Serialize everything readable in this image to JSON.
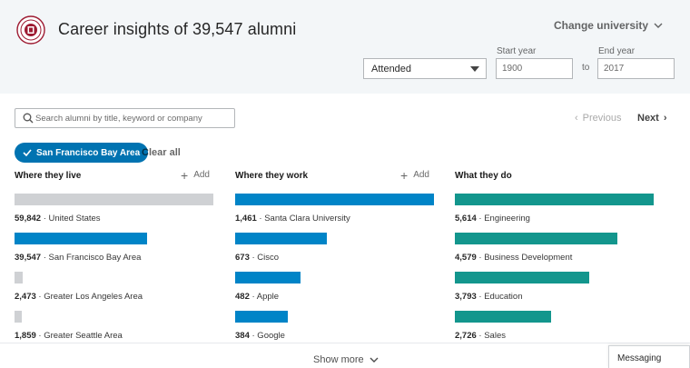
{
  "header": {
    "title": "Career insights of 39,547 alumni",
    "change_university": "Change university",
    "attendance_select": "Attended",
    "start_year_label": "Start year",
    "start_year_value": "1900",
    "to_label": "to",
    "end_year_label": "End year",
    "end_year_value": "2017"
  },
  "search": {
    "placeholder": "Search alumni by title, keyword or company"
  },
  "pager": {
    "previous": "Previous",
    "next": "Next"
  },
  "filters": {
    "active_chip": "San Francisco Bay Area",
    "clear_all": "Clear all"
  },
  "columns": [
    {
      "heading": "Where they live",
      "add_label": "Add",
      "bar_color": "#cfd1d4",
      "items": [
        {
          "count": "59,842",
          "label": "United States",
          "value": 59842,
          "fraction": 1.0
        },
        {
          "count": "39,547",
          "label": "San Francisco Bay Area",
          "value": 39547,
          "fraction": 0.665
        },
        {
          "count": "2,473",
          "label": "Greater Los Angeles Area",
          "value": 2473,
          "fraction": 0.042
        },
        {
          "count": "1,859",
          "label": "Greater Seattle Area",
          "value": 1859,
          "fraction": 0.032
        }
      ],
      "highlight_colors": [
        "#cfd1d4",
        "#0084c7",
        "#cfd1d4",
        "#cfd1d4"
      ]
    },
    {
      "heading": "Where they work",
      "add_label": "Add",
      "bar_color": "#0084c7",
      "items": [
        {
          "count": "1,461",
          "label": "Santa Clara University",
          "value": 1461,
          "fraction": 1.0
        },
        {
          "count": "673",
          "label": "Cisco",
          "value": 673,
          "fraction": 0.46
        },
        {
          "count": "482",
          "label": "Apple",
          "value": 482,
          "fraction": 0.33
        },
        {
          "count": "384",
          "label": "Google",
          "value": 384,
          "fraction": 0.263
        }
      ]
    },
    {
      "heading": "What they do",
      "add_label": "",
      "bar_color": "#13968d",
      "items": [
        {
          "count": "5,614",
          "label": "Engineering",
          "value": 5614,
          "fraction": 1.0
        },
        {
          "count": "4,579",
          "label": "Business Development",
          "value": 4579,
          "fraction": 0.816
        },
        {
          "count": "3,793",
          "label": "Education",
          "value": 3793,
          "fraction": 0.676
        },
        {
          "count": "2,726",
          "label": "Sales",
          "value": 2726,
          "fraction": 0.486
        }
      ]
    }
  ],
  "footer": {
    "show_more": "Show more",
    "messaging": "Messaging"
  },
  "colors": {
    "accent": "#0073b1",
    "header_bg": "#f3f6f8"
  },
  "icons": {
    "logo": "university-seal-icon",
    "search": "search-icon",
    "chevron": "chevron-down-icon",
    "check": "check-icon",
    "plus": "plus-icon"
  }
}
